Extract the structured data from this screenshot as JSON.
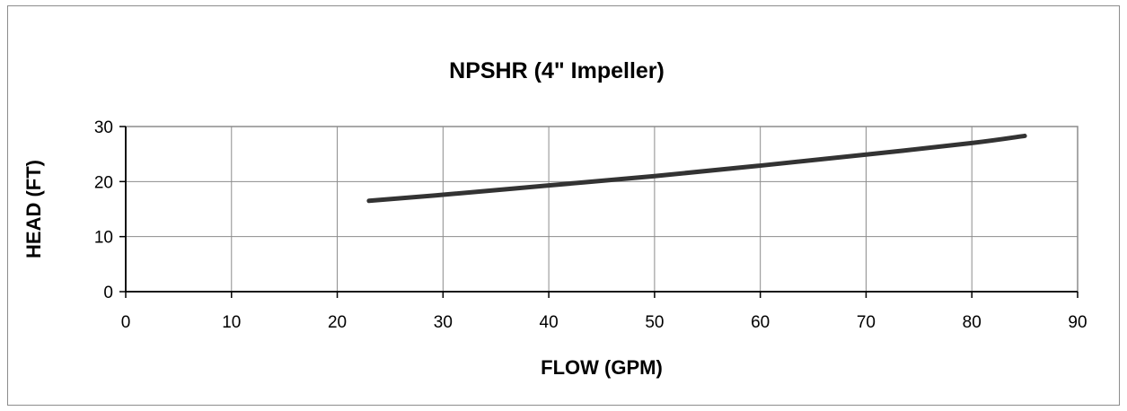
{
  "chart_data": {
    "type": "line",
    "title": "NPSHR (4\" Impeller)",
    "xlabel": "FLOW (GPM)",
    "ylabel": "HEAD (FT)",
    "xlim": [
      0,
      90
    ],
    "ylim": [
      0,
      30
    ],
    "x_ticks": [
      "0",
      "10",
      "20",
      "30",
      "40",
      "50",
      "60",
      "70",
      "80",
      "90"
    ],
    "y_ticks": [
      "0",
      "10",
      "20",
      "30"
    ],
    "grid": true,
    "legend": "none",
    "series": [
      {
        "color": "#333333",
        "x": [
          23,
          30,
          40,
          50,
          60,
          70,
          80,
          85
        ],
        "y": [
          16.5,
          17.6,
          19.3,
          21.0,
          22.9,
          24.9,
          27.0,
          28.3
        ]
      }
    ]
  }
}
